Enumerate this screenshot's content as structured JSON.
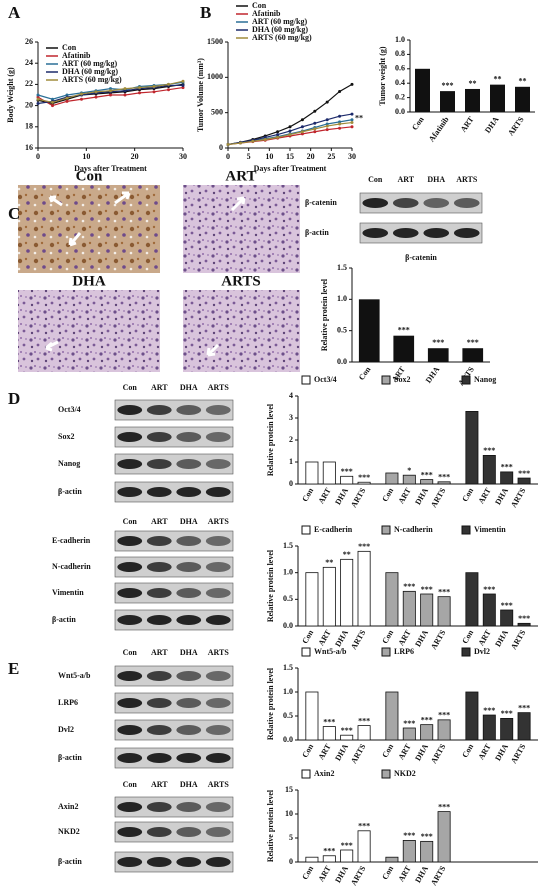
{
  "panel_labels": [
    "A",
    "B",
    "C",
    "D",
    "E"
  ],
  "ihc_labels": [
    "Con",
    "ART",
    "DHA",
    "ARTS"
  ],
  "blots": [
    {
      "lanes": [
        "Con",
        "ART",
        "DHA",
        "ARTS"
      ],
      "rows": [
        "β-catenin",
        "β-actin"
      ]
    },
    {
      "lanes": [
        "Con",
        "ART",
        "DHA",
        "ARTS"
      ],
      "rows": [
        "Oct3/4",
        "Sox2",
        "Nanog",
        "β-actin"
      ]
    },
    {
      "lanes": [
        "Con",
        "ART",
        "DHA",
        "ARTS"
      ],
      "rows": [
        "E-cadherin",
        "N-cadherin",
        "Vimentin",
        "β-actin"
      ]
    },
    {
      "lanes": [
        "Con",
        "ART",
        "DHA",
        "ARTS"
      ],
      "rows": [
        "Wnt5-a/b",
        "LRP6",
        "Dvl2",
        "β-actin"
      ]
    },
    {
      "lanes": [
        "Con",
        "ART",
        "DHA",
        "ARTS"
      ],
      "rows": [
        "Axin2",
        "NKD2",
        "β-actin"
      ]
    }
  ],
  "chart_data": [
    {
      "type": "line",
      "y_label": "Body Weight (g)",
      "x_label": "Days after Treatment",
      "x": [
        0,
        3,
        6,
        9,
        12,
        15,
        18,
        21,
        24,
        27,
        30
      ],
      "xlim": [
        0,
        30
      ],
      "xticks": [
        0,
        10,
        20,
        30
      ],
      "ylim": [
        16,
        26
      ],
      "yticks": [
        16,
        18,
        20,
        22,
        24,
        26
      ],
      "series": [
        {
          "name": "Con",
          "color": "#111111",
          "values": [
            20.5,
            20.2,
            20.6,
            21.0,
            21.1,
            21.2,
            21.3,
            21.5,
            21.6,
            21.8,
            22.0
          ]
        },
        {
          "name": "Afatinib",
          "color": "#c0262d",
          "values": [
            20.8,
            20.0,
            20.4,
            20.6,
            20.8,
            21.0,
            21.0,
            21.2,
            21.3,
            21.5,
            21.7
          ]
        },
        {
          "name": "ART (60 mg/kg)",
          "color": "#2a6f97",
          "values": [
            21.0,
            20.6,
            21.0,
            21.2,
            21.4,
            21.6,
            21.5,
            21.8,
            21.9,
            22.0,
            22.2
          ]
        },
        {
          "name": "DHA (60 mg/kg)",
          "color": "#1c2a6b",
          "values": [
            20.2,
            20.4,
            20.8,
            21.0,
            21.2,
            21.3,
            21.4,
            21.6,
            21.7,
            21.9,
            21.9
          ]
        },
        {
          "name": "ARTS (60 mg/kg)",
          "color": "#a08c3c",
          "values": [
            20.6,
            20.3,
            20.7,
            21.1,
            21.3,
            21.4,
            21.6,
            21.7,
            21.8,
            22.0,
            22.3
          ]
        }
      ]
    },
    {
      "type": "line",
      "y_label": "Tumor Volume (mm³)",
      "x_label": "Days after Treatment",
      "x": [
        0,
        3,
        6,
        9,
        12,
        15,
        18,
        21,
        24,
        27,
        30
      ],
      "xlim": [
        0,
        30
      ],
      "xticks": [
        0,
        5,
        10,
        15,
        20,
        25,
        30
      ],
      "ylim": [
        0,
        1500
      ],
      "yticks": [
        0,
        500,
        1000,
        1500
      ],
      "annotation": "**",
      "series": [
        {
          "name": "Con",
          "color": "#111111",
          "values": [
            50,
            80,
            120,
            170,
            230,
            300,
            400,
            520,
            650,
            800,
            900
          ]
        },
        {
          "name": "Afatinib",
          "color": "#c0262d",
          "values": [
            50,
            70,
            90,
            110,
            140,
            170,
            200,
            230,
            260,
            280,
            300
          ]
        },
        {
          "name": "ART (60 mg/kg)",
          "color": "#2a6f97",
          "values": [
            50,
            75,
            100,
            130,
            160,
            200,
            240,
            290,
            340,
            370,
            400
          ]
        },
        {
          "name": "DHA (60 mg/kg)",
          "color": "#1c2a6b",
          "values": [
            50,
            80,
            110,
            150,
            190,
            240,
            300,
            350,
            400,
            450,
            480
          ]
        },
        {
          "name": "ARTS (60 mg/kg)",
          "color": "#a08c3c",
          "values": [
            50,
            70,
            95,
            120,
            150,
            190,
            230,
            270,
            310,
            340,
            360
          ]
        }
      ]
    },
    {
      "type": "bar",
      "y_label": "Tumor weight (g)",
      "color": "#111111",
      "categories": [
        "Con",
        "Afatinib",
        "ART",
        "DHA",
        "ARTS"
      ],
      "values": [
        0.6,
        0.29,
        0.32,
        0.38,
        0.35
      ],
      "significance": [
        null,
        "***",
        "**",
        "**",
        "**"
      ],
      "ylim": [
        0,
        1.0
      ],
      "yticks": [
        {
          "value": 0,
          "label": "0.0"
        },
        {
          "value": 0.2,
          "label": "0.2"
        },
        {
          "value": 0.4,
          "label": "0.4"
        },
        {
          "value": 0.6,
          "label": "0.6"
        },
        {
          "value": 0.8,
          "label": "0.8"
        },
        {
          "value": 1.0,
          "label": "1.0"
        }
      ]
    },
    {
      "type": "bar",
      "title": "β-catenin",
      "y_label": "Relative protein level",
      "color": "#111111",
      "categories": [
        "Con",
        "ART",
        "DHA",
        "ARTS"
      ],
      "values": [
        1.0,
        0.42,
        0.22,
        0.22
      ],
      "significance": [
        null,
        "***",
        "***",
        "***"
      ],
      "ylim": [
        0,
        1.5
      ],
      "yticks": [
        {
          "value": 0,
          "label": "0.0"
        },
        {
          "value": 0.5,
          "label": "0.5"
        },
        {
          "value": 1.0,
          "label": "1.0"
        },
        {
          "value": 1.5,
          "label": "1.5"
        }
      ]
    },
    {
      "type": "grouped",
      "y_label": "Relative protein level",
      "categories": [
        "Con",
        "ART",
        "DHA",
        "ARTS"
      ],
      "ylim": [
        0,
        4
      ],
      "yticks": [
        0,
        1,
        2,
        3,
        4
      ],
      "series": [
        {
          "name": "Oct3/4",
          "color": "#ffffff",
          "values": [
            1.0,
            1.0,
            0.35,
            0.08
          ],
          "significance": [
            null,
            null,
            "***",
            "***"
          ]
        },
        {
          "name": "Sox2",
          "color": "#a6a6a6",
          "values": [
            0.5,
            0.4,
            0.2,
            0.1
          ],
          "significance": [
            null,
            "*",
            "***",
            "***"
          ]
        },
        {
          "name": "Nanog",
          "color": "#333333",
          "values": [
            3.3,
            1.3,
            0.55,
            0.27
          ],
          "significance": [
            null,
            "***",
            "***",
            "***"
          ]
        }
      ]
    },
    {
      "type": "grouped",
      "y_label": "Relative protein level",
      "categories": [
        "Con",
        "ART",
        "DHA",
        "ARTS"
      ],
      "ylim": [
        0,
        1.5
      ],
      "yticks": [
        {
          "value": 0,
          "label": "0.0"
        },
        {
          "value": 0.5,
          "label": "0.5"
        },
        {
          "value": 1.0,
          "label": "1.0"
        },
        {
          "value": 1.5,
          "label": "1.5"
        }
      ],
      "series": [
        {
          "name": "E-cadherin",
          "color": "#ffffff",
          "values": [
            1.0,
            1.1,
            1.25,
            1.4
          ],
          "significance": [
            null,
            "**",
            "**",
            "***"
          ]
        },
        {
          "name": "N-cadherin",
          "color": "#a6a6a6",
          "values": [
            1.0,
            0.65,
            0.6,
            0.55
          ],
          "significance": [
            null,
            "***",
            "***",
            "***"
          ]
        },
        {
          "name": "Vimentin",
          "color": "#333333",
          "values": [
            1.0,
            0.6,
            0.3,
            0.05
          ],
          "significance": [
            null,
            "***",
            "***",
            "***"
          ]
        }
      ]
    },
    {
      "type": "grouped",
      "y_label": "Relative protein level",
      "categories": [
        "Con",
        "ART",
        "DHA",
        "ARTS"
      ],
      "ylim": [
        0,
        1.5
      ],
      "yticks": [
        {
          "value": 0,
          "label": "0.0"
        },
        {
          "value": 0.5,
          "label": "0.5"
        },
        {
          "value": 1.0,
          "label": "1.0"
        },
        {
          "value": 1.5,
          "label": "1.5"
        }
      ],
      "series": [
        {
          "name": "Wnt5-a/b",
          "color": "#ffffff",
          "values": [
            1.0,
            0.28,
            0.1,
            0.3
          ],
          "significance": [
            null,
            "***",
            "***",
            "***"
          ]
        },
        {
          "name": "LRP6",
          "color": "#a6a6a6",
          "values": [
            1.0,
            0.25,
            0.32,
            0.42
          ],
          "significance": [
            null,
            "***",
            "***",
            "***"
          ]
        },
        {
          "name": "Dvl2",
          "color": "#333333",
          "values": [
            1.0,
            0.52,
            0.45,
            0.57
          ],
          "significance": [
            null,
            "***",
            "***",
            "***"
          ]
        }
      ]
    },
    {
      "type": "grouped",
      "y_label": "Relative protein level",
      "categories": [
        "Con",
        "ART",
        "DHA",
        "ARTS"
      ],
      "ylim": [
        0,
        15
      ],
      "yticks": [
        0,
        5,
        10,
        15
      ],
      "series": [
        {
          "name": "Axin2",
          "color": "#ffffff",
          "values": [
            1.0,
            1.3,
            2.5,
            6.5
          ],
          "significance": [
            null,
            "***",
            "***",
            "***"
          ]
        },
        {
          "name": "NKD2",
          "color": "#a6a6a6",
          "values": [
            1.0,
            4.5,
            4.3,
            10.5
          ],
          "significance": [
            null,
            "***",
            "***",
            "***"
          ]
        }
      ]
    }
  ]
}
